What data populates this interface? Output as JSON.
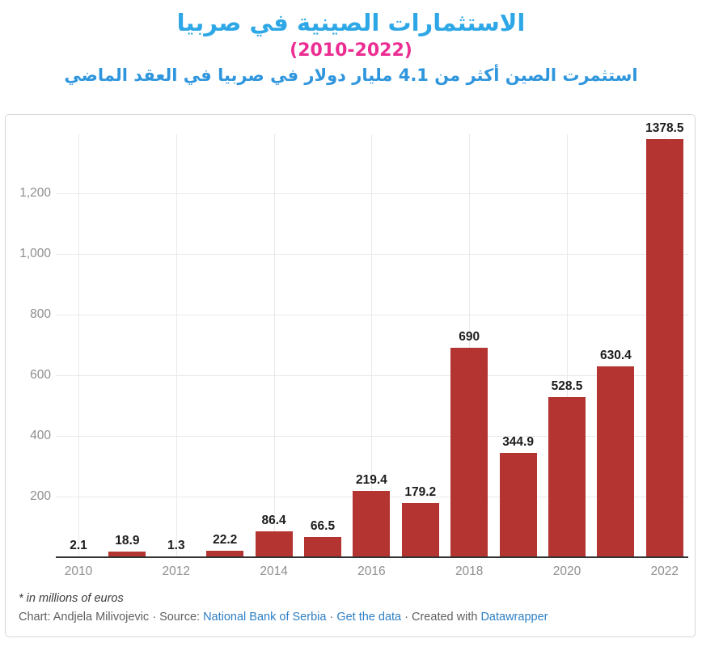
{
  "header": {
    "title": "الاستثمارات الصينية في صربيا",
    "subtitle_years": "(2010-2022)",
    "description": "استثمرت الصين أكثر من 4.1 مليار دولار في صربيا في العقد الماضي",
    "title_color": "#2da7e6",
    "years_color": "#ec2d92",
    "description_color": "#2f96dd"
  },
  "chart_data": {
    "type": "bar",
    "categories": [
      2010,
      2011,
      2012,
      2013,
      2014,
      2015,
      2016,
      2017,
      2018,
      2019,
      2020,
      2021,
      2022
    ],
    "values": [
      2.1,
      18.9,
      1.3,
      22.2,
      86.4,
      66.5,
      219.4,
      179.2,
      690,
      344.9,
      528.5,
      630.4,
      1378.5
    ],
    "bar_labels": [
      "2.1",
      "18.9",
      "1.3",
      "22.2",
      "86.4",
      "66.5",
      "219.4",
      "179.2",
      "690",
      "344.9",
      "528.5",
      "630.4",
      "1378.5"
    ],
    "x_tick_labels": [
      "2010",
      "2012",
      "2014",
      "2016",
      "2018",
      "2020",
      "2022"
    ],
    "x_tick_years": [
      2010,
      2012,
      2014,
      2016,
      2018,
      2020,
      2022
    ],
    "y_ticks": [
      200,
      400,
      600,
      800,
      1000,
      1200
    ],
    "y_tick_labels": [
      "200",
      "400",
      "600",
      "800",
      "1,000",
      "1,200"
    ],
    "ylim": [
      0,
      1460
    ],
    "bar_color": "#b33430",
    "grid": true,
    "title": "الاستثمارات الصينية في صربيا (2010-2022)",
    "xlabel": "",
    "ylabel": "* in millions of euros"
  },
  "footer": {
    "footnote": "* in millions of euros",
    "credit_prefix": "Chart: Andjela Milivojevic · Source: ",
    "source_link": "National Bank of Serbia",
    "sep": " · ",
    "get_data_link": "Get the data",
    "created_with": " · Created with ",
    "datawrapper_link": "Datawrapper",
    "link_color": "#2d7fc4"
  }
}
